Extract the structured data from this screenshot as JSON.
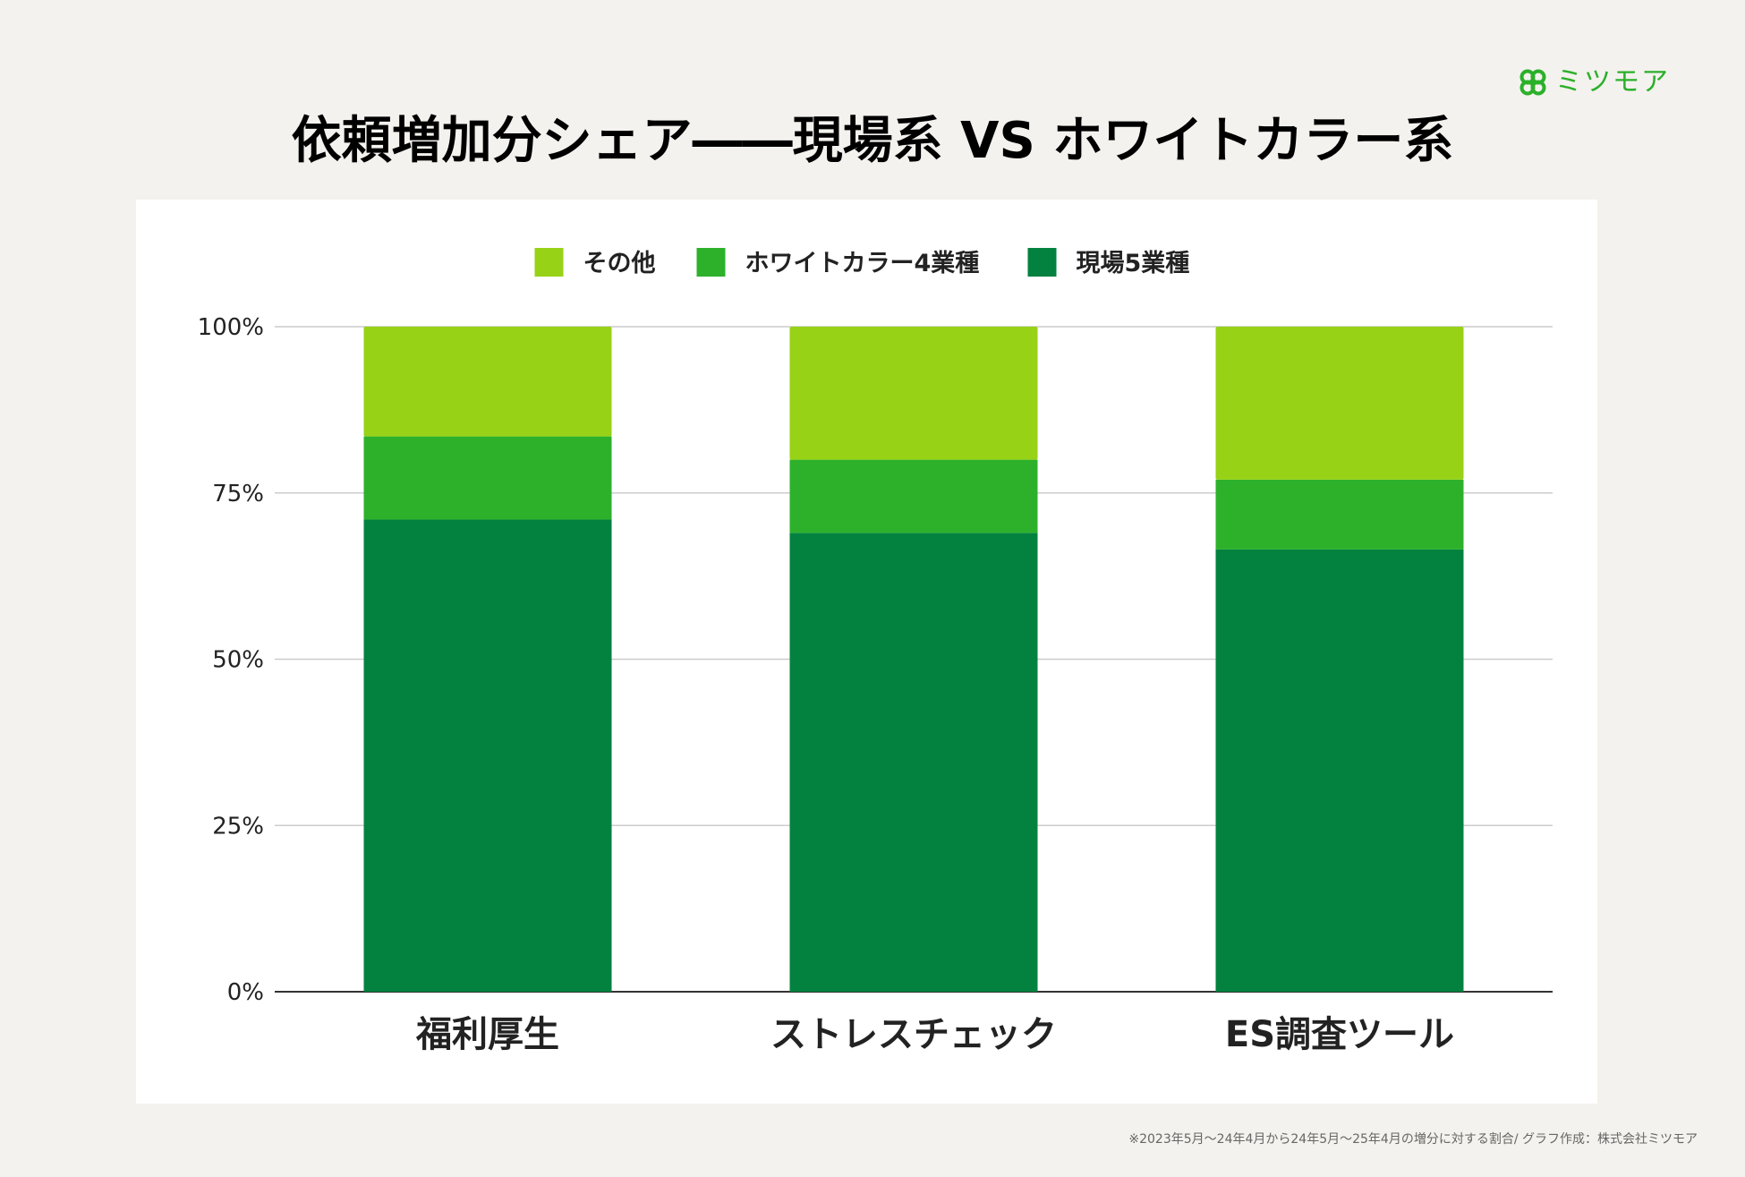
{
  "brand": {
    "name": "ミツモア",
    "icon": "clover-logo-icon",
    "color": "#2bb02a"
  },
  "title": "依頼増加分シェア――現場系 VS ホワイトカラー系",
  "footnote": "※2023年5月〜24年4月から24年5月〜25年4月の増分に対する割合/ グラフ作成：株式会社ミツモア",
  "chart_data": {
    "type": "bar",
    "stacked": true,
    "categories": [
      "福利厚生",
      "ストレスチェック",
      "ES調査ツール"
    ],
    "series": [
      {
        "name": "現場5業種",
        "color": "#03823f",
        "values": [
          71,
          69,
          66.5
        ]
      },
      {
        "name": "ホワイトカラー4業種",
        "color": "#2db12b",
        "values": [
          12.5,
          11,
          10.5
        ]
      },
      {
        "name": "その他",
        "color": "#97d216",
        "values": [
          16.5,
          20,
          23
        ]
      }
    ],
    "legend_order": [
      "その他",
      "ホワイトカラー4業種",
      "現場5業種"
    ],
    "y_ticks": [
      "0%",
      "25%",
      "50%",
      "75%",
      "100%"
    ],
    "ylim": [
      0,
      100
    ],
    "grid": true,
    "legend_position": "top"
  }
}
